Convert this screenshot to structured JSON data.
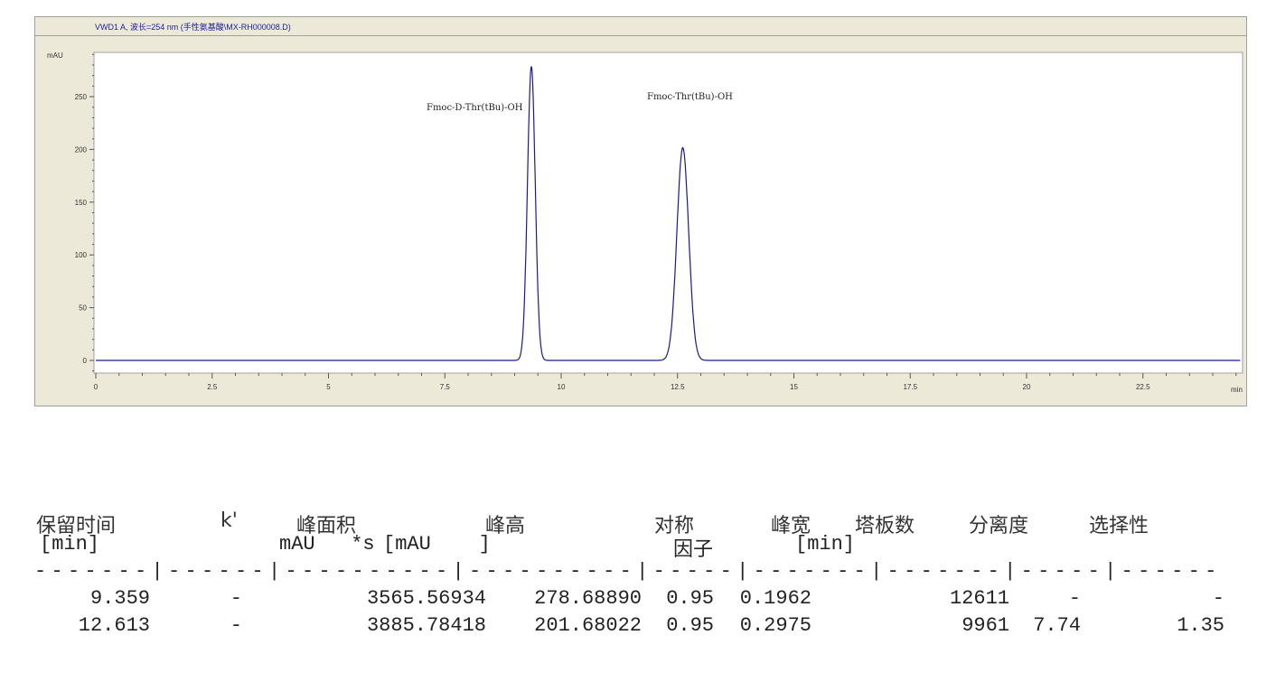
{
  "chart_data": {
    "type": "line",
    "title": "VWD1 A, 波长=254 nm (手性氨基酸\\MX-RH000008.D)",
    "ylabel": "mAU",
    "xlabel": "min",
    "xlim": [
      0,
      24.6
    ],
    "ylim": [
      -12,
      292
    ],
    "x_ticks": [
      "0",
      "2.5",
      "5",
      "7.5",
      "10",
      "12.5",
      "15",
      "17.5",
      "20",
      "22.5"
    ],
    "x_tick_values": [
      0,
      2.5,
      5,
      7.5,
      10,
      12.5,
      15,
      17.5,
      20,
      22.5
    ],
    "y_ticks": [
      "0",
      "50",
      "100",
      "150",
      "200",
      "250"
    ],
    "y_tick_values": [
      0,
      50,
      100,
      150,
      200,
      250
    ],
    "grid": false,
    "line_color": "#1a1a8c",
    "peaks": [
      {
        "label": "Fmoc-D-Thr(tBu)-OH",
        "rt": 9.359,
        "height": 278.6889,
        "width": 0.1962
      },
      {
        "label": "Fmoc-Thr(tBu)-OH",
        "rt": 12.613,
        "height": 201.68022,
        "width": 0.2975
      }
    ]
  },
  "table": {
    "headers": [
      "保留时间",
      "k'",
      "峰面积",
      "峰高",
      "对称",
      "峰宽",
      "塔板数",
      "分离度",
      "选择性"
    ],
    "units": [
      "[min]",
      "",
      "mAU   *s",
      "[mAU    ]",
      "因子",
      "[min]",
      "",
      "",
      ""
    ],
    "separator": "-------|------|----------|----------|-----|-------|-------|-----|------",
    "rows": [
      [
        "9.359",
        "-",
        "3565.56934",
        "278.68890",
        "0.95",
        "0.1962",
        "12611",
        "-",
        "-"
      ],
      [
        "12.613",
        "-",
        "3885.78418",
        "201.68022",
        "0.95",
        "0.2975",
        "9961",
        "7.74",
        "1.35"
      ]
    ]
  }
}
